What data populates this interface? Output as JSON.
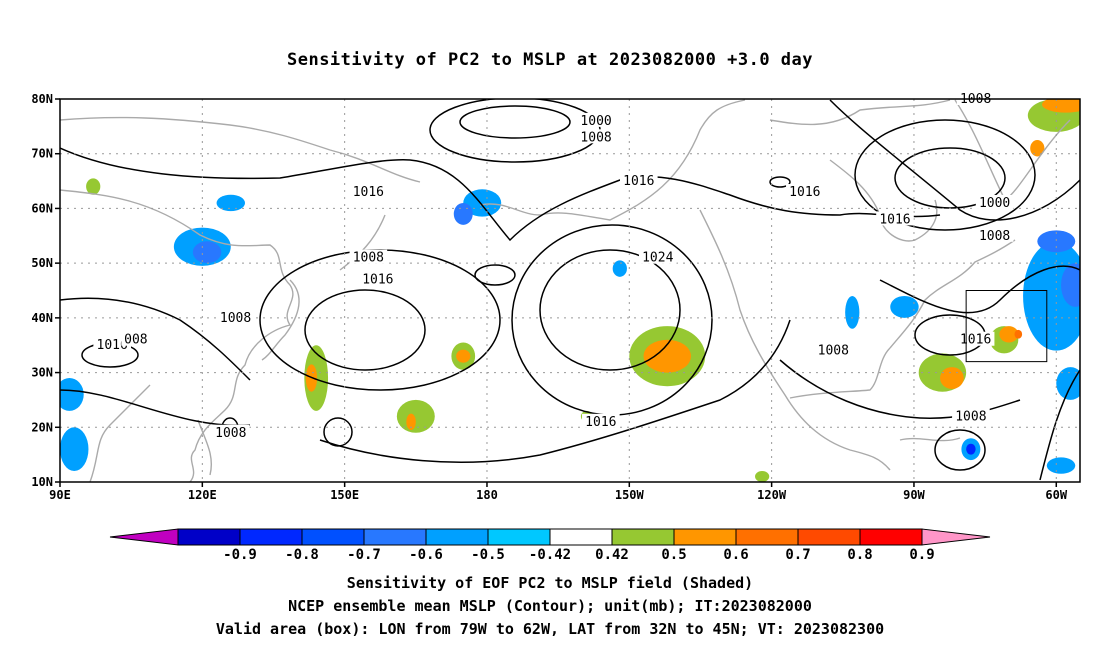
{
  "title": "Sensitivity of PC2 to MSLP at 2023082000 +3.0 day",
  "map": {
    "lon_range": [
      90,
      305
    ],
    "lat_range": [
      10,
      80
    ],
    "lat_ticks": [
      {
        "value": 80,
        "label": "80N"
      },
      {
        "value": 70,
        "label": "70N"
      },
      {
        "value": 60,
        "label": "60N"
      },
      {
        "value": 50,
        "label": "50N"
      },
      {
        "value": 40,
        "label": "40N"
      },
      {
        "value": 30,
        "label": "30N"
      },
      {
        "value": 20,
        "label": "20N"
      },
      {
        "value": 10,
        "label": "10N"
      }
    ],
    "lon_ticks": [
      {
        "value": 90,
        "label": "90E"
      },
      {
        "value": 120,
        "label": "120E"
      },
      {
        "value": 150,
        "label": "150E"
      },
      {
        "value": 180,
        "label": "180"
      },
      {
        "value": 210,
        "label": "150W"
      },
      {
        "value": 240,
        "label": "120W"
      },
      {
        "value": 270,
        "label": "90W"
      },
      {
        "value": 300,
        "label": "60W"
      }
    ],
    "valid_box": {
      "lon_min": 281,
      "lon_max": 298,
      "lat_min": 32,
      "lat_max": 45
    },
    "contour_labels": [
      {
        "text": "1000",
        "lon": 203,
        "lat": 76
      },
      {
        "text": "1008",
        "lon": 203,
        "lat": 73
      },
      {
        "text": "1008",
        "lon": 283,
        "lat": 80
      },
      {
        "text": "1016",
        "lon": 155,
        "lat": 63
      },
      {
        "text": "1016",
        "lon": 212,
        "lat": 65
      },
      {
        "text": "1016",
        "lon": 247,
        "lat": 63
      },
      {
        "text": "1016",
        "lon": 266,
        "lat": 58
      },
      {
        "text": "1000",
        "lon": 287,
        "lat": 61
      },
      {
        "text": "1008",
        "lon": 287,
        "lat": 55
      },
      {
        "text": "1008",
        "lon": 155,
        "lat": 51
      },
      {
        "text": "1016",
        "lon": 157,
        "lat": 47
      },
      {
        "text": "1024",
        "lon": 216,
        "lat": 51
      },
      {
        "text": "1008",
        "lon": 127,
        "lat": 40
      },
      {
        "text": "1016",
        "lon": 101,
        "lat": 35
      },
      {
        "text": "008",
        "lon": 106,
        "lat": 36
      },
      {
        "text": "1008",
        "lon": 253,
        "lat": 34
      },
      {
        "text": "1016",
        "lon": 283,
        "lat": 36
      },
      {
        "text": "1016",
        "lon": 204,
        "lat": 21
      },
      {
        "text": "1008",
        "lon": 126,
        "lat": 19
      },
      {
        "text": "1008",
        "lon": 282,
        "lat": 22
      }
    ],
    "shaded_regions": [
      {
        "lon": 120,
        "lat": 53,
        "rx": 6,
        "ry": 3.5,
        "level": "neg_0.5"
      },
      {
        "lon": 121,
        "lat": 52,
        "rx": 3,
        "ry": 2,
        "level": "neg_0.6"
      },
      {
        "lon": 126,
        "lat": 61,
        "rx": 3,
        "ry": 1.5,
        "level": "neg_0.5"
      },
      {
        "lon": 179,
        "lat": 61,
        "rx": 4,
        "ry": 2.5,
        "level": "neg_0.5"
      },
      {
        "lon": 175,
        "lat": 59,
        "rx": 2,
        "ry": 2,
        "level": "neg_0.6"
      },
      {
        "lon": 92,
        "lat": 26,
        "rx": 3,
        "ry": 3,
        "level": "neg_0.5"
      },
      {
        "lon": 93,
        "lat": 16,
        "rx": 3,
        "ry": 4,
        "level": "neg_0.5"
      },
      {
        "lon": 208,
        "lat": 49,
        "rx": 1.5,
        "ry": 1.5,
        "level": "neg_0.5"
      },
      {
        "lon": 257,
        "lat": 41,
        "rx": 1.5,
        "ry": 3,
        "level": "neg_0.5"
      },
      {
        "lon": 268,
        "lat": 42,
        "rx": 3,
        "ry": 2,
        "level": "neg_0.5"
      },
      {
        "lon": 300,
        "lat": 44,
        "rx": 7,
        "ry": 10,
        "level": "neg_0.5"
      },
      {
        "lon": 304,
        "lat": 46,
        "rx": 3,
        "ry": 4,
        "level": "neg_0.6"
      },
      {
        "lon": 300,
        "lat": 54,
        "rx": 4,
        "ry": 2,
        "level": "neg_0.6"
      },
      {
        "lon": 303,
        "lat": 28,
        "rx": 3,
        "ry": 3,
        "level": "neg_0.5"
      },
      {
        "lon": 282,
        "lat": 16,
        "rx": 2,
        "ry": 2,
        "level": "neg_0.5"
      },
      {
        "lon": 282,
        "lat": 16,
        "rx": 1,
        "ry": 1,
        "level": "neg_0.8"
      },
      {
        "lon": 301,
        "lat": 13,
        "rx": 3,
        "ry": 1.5,
        "level": "neg_0.5"
      },
      {
        "lon": 144,
        "lat": 29,
        "rx": 2.5,
        "ry": 6,
        "level": "pos_0.5"
      },
      {
        "lon": 143,
        "lat": 29,
        "rx": 1.2,
        "ry": 2.5,
        "level": "pos_0.6"
      },
      {
        "lon": 175,
        "lat": 33,
        "rx": 2.5,
        "ry": 2.5,
        "level": "pos_0.5"
      },
      {
        "lon": 175,
        "lat": 33,
        "rx": 1.5,
        "ry": 1.2,
        "level": "pos_0.6"
      },
      {
        "lon": 165,
        "lat": 22,
        "rx": 4,
        "ry": 3,
        "level": "pos_0.5"
      },
      {
        "lon": 164,
        "lat": 21,
        "rx": 1,
        "ry": 1.5,
        "level": "pos_0.6"
      },
      {
        "lon": 97,
        "lat": 64,
        "rx": 1.5,
        "ry": 1.5,
        "level": "pos_0.5"
      },
      {
        "lon": 218,
        "lat": 33,
        "rx": 8,
        "ry": 5.5,
        "level": "pos_0.5"
      },
      {
        "lon": 218,
        "lat": 33,
        "rx": 5,
        "ry": 3,
        "level": "pos_0.6"
      },
      {
        "lon": 276,
        "lat": 30,
        "rx": 5,
        "ry": 3.5,
        "level": "pos_0.5"
      },
      {
        "lon": 278,
        "lat": 29,
        "rx": 2.5,
        "ry": 2,
        "level": "pos_0.6"
      },
      {
        "lon": 289,
        "lat": 36,
        "rx": 3,
        "ry": 2.5,
        "level": "pos_0.5"
      },
      {
        "lon": 290,
        "lat": 37,
        "rx": 2,
        "ry": 1.5,
        "level": "pos_0.6"
      },
      {
        "lon": 292,
        "lat": 37,
        "rx": 0.8,
        "ry": 0.8,
        "level": "pos_0.7"
      },
      {
        "lon": 300,
        "lat": 77,
        "rx": 6,
        "ry": 3,
        "level": "pos_0.5"
      },
      {
        "lon": 302,
        "lat": 79,
        "rx": 5,
        "ry": 1.5,
        "level": "pos_0.6"
      },
      {
        "lon": 296,
        "lat": 71,
        "rx": 1.5,
        "ry": 1.5,
        "level": "pos_0.6"
      },
      {
        "lon": 201,
        "lat": 22,
        "rx": 1.2,
        "ry": 1,
        "level": "pos_0.5"
      },
      {
        "lon": 238,
        "lat": 11,
        "rx": 1.5,
        "ry": 1,
        "level": "pos_0.5"
      }
    ]
  },
  "colorbar": {
    "labels": [
      "-0.9",
      "-0.8",
      "-0.7",
      "-0.6",
      "-0.5",
      "-0.42",
      "0.42",
      "0.5",
      "0.6",
      "0.7",
      "0.8",
      "0.9"
    ],
    "colors": [
      "#c000c0",
      "#0000c8",
      "#0028ff",
      "#0050ff",
      "#2878ff",
      "#00a0ff",
      "#00c8ff",
      "#ffffff",
      "#96c832",
      "#ff9600",
      "#ff7000",
      "#ff4a00",
      "#ff0000",
      "#ff96c8"
    ],
    "level_colors": {
      "neg_0.9": "#0000c8",
      "neg_0.8": "#0028ff",
      "neg_0.7": "#0050ff",
      "neg_0.6": "#2878ff",
      "neg_0.5": "#00a0ff",
      "neg_0.42": "#00c8ff",
      "pos_0.5": "#96c832",
      "pos_0.6": "#ff9600",
      "pos_0.7": "#ff7000",
      "pos_0.8": "#ff4a00",
      "pos_0.9": "#ff0000"
    }
  },
  "captions": [
    "Sensitivity of EOF PC2 to MSLP field (Shaded)",
    "NCEP ensemble mean MSLP (Contour); unit(mb); IT:2023082000",
    "Valid area (box): LON from 79W to 62W, LAT from 32N to 45N; VT: 2023082300"
  ]
}
